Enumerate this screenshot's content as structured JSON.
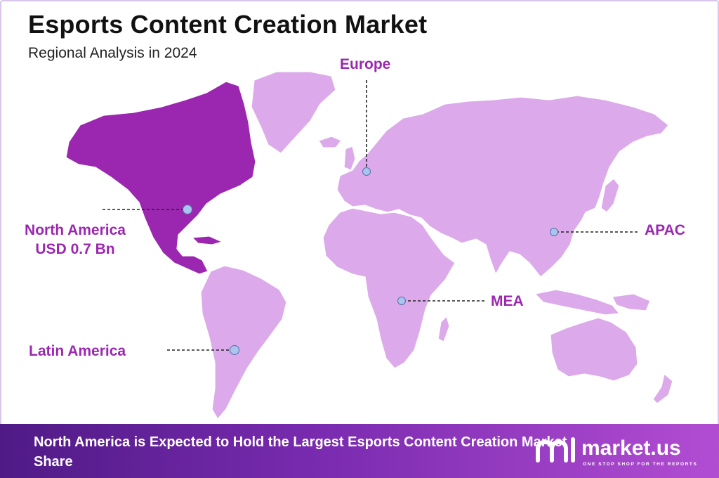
{
  "header": {
    "title": "Esports Content Creation Market",
    "subtitle": "Regional Analysis in 2024"
  },
  "regions": {
    "europe": {
      "name": "Europe"
    },
    "north_america": {
      "name": "North America",
      "value": "USD 0.7 Bn",
      "highlighted": true
    },
    "apac": {
      "name": "APAC"
    },
    "mea": {
      "name": "MEA"
    },
    "latin_america": {
      "name": "Latin America"
    }
  },
  "footer": {
    "text": "North America is Expected to Hold the Largest Esports Content Creation Market Share"
  },
  "brand": {
    "name": "market.us",
    "tagline": "ONE STOP SHOP FOR THE REPORTS"
  },
  "colors": {
    "highlight_region": "#9b27b0",
    "other_regions": "#dcaaea",
    "label_text": "#9b27b0",
    "marker": "#a9c4ee",
    "footer_gradient": [
      "#4f1a86",
      "#b24dd2"
    ]
  }
}
